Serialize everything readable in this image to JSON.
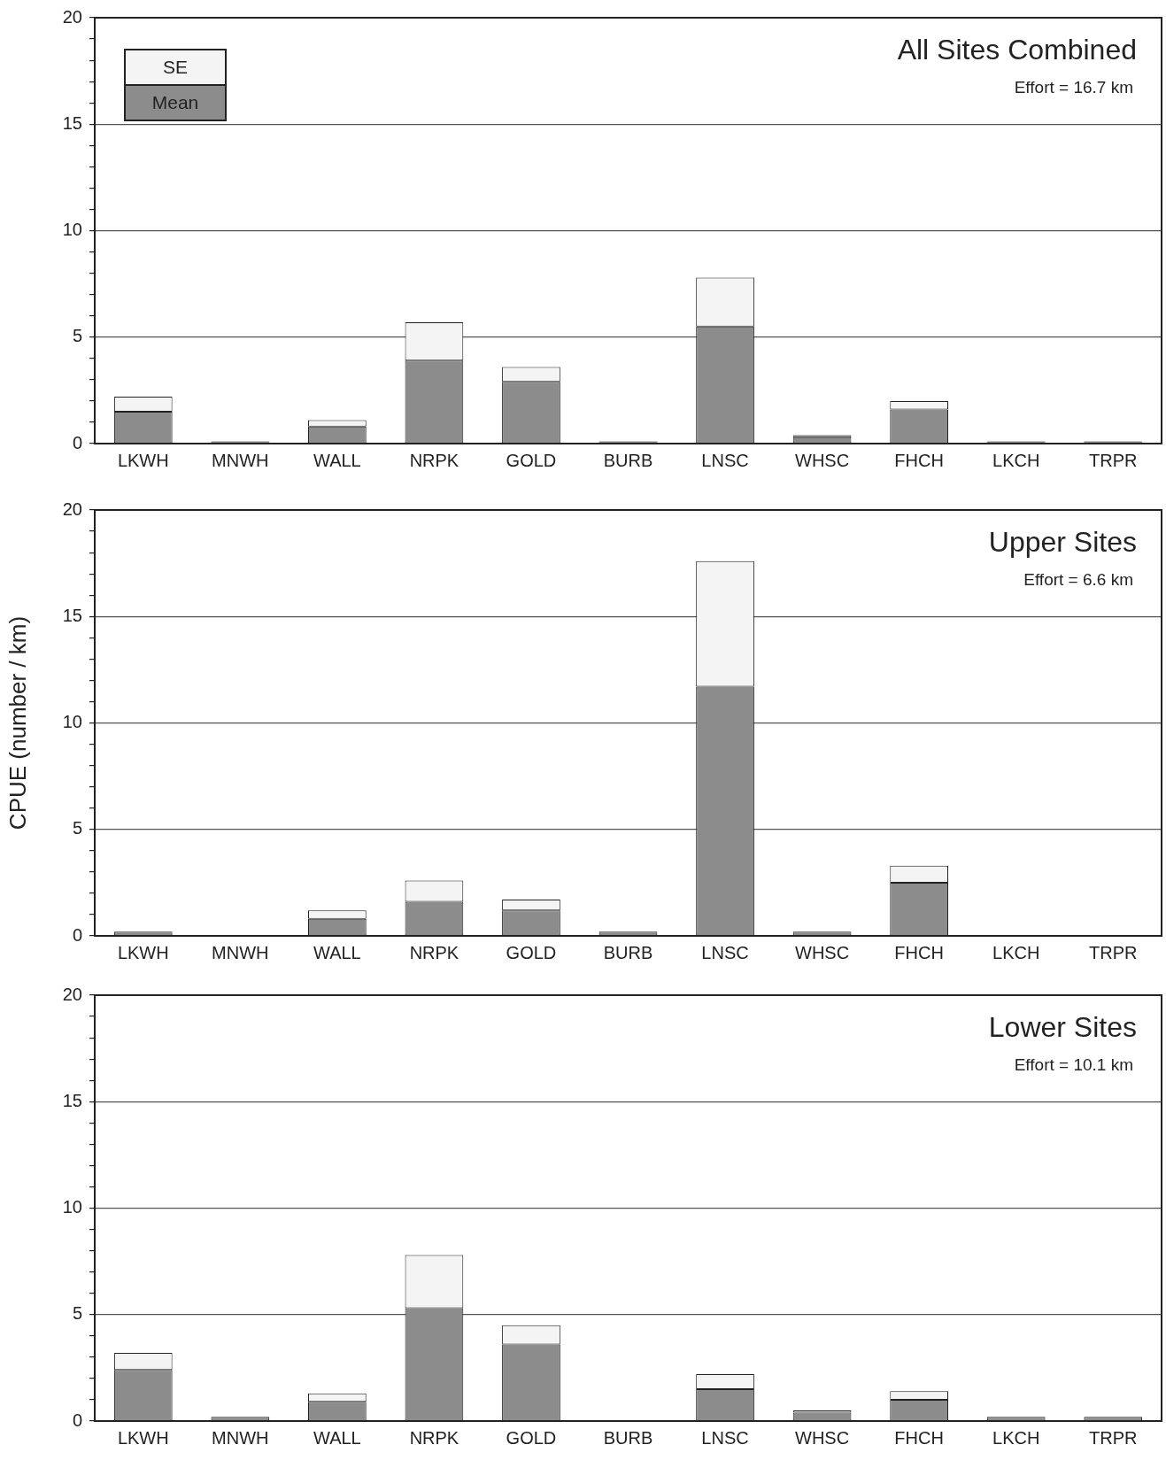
{
  "chart_data": [
    {
      "type": "bar",
      "title": "All Sites Combined",
      "subtitle": "Effort = 16.7 km",
      "stacked": true,
      "grid": "y",
      "legend": "top left",
      "categories": [
        "LKWH",
        "MNWH",
        "WALL",
        "NRPK",
        "GOLD",
        "BURB",
        "LNSC",
        "WHSC",
        "FHCH",
        "LKCH",
        "TRPR"
      ],
      "series": [
        {
          "name": "Mean",
          "color": "#8c8c8c",
          "values": [
            1.5,
            0.1,
            0.8,
            3.9,
            2.9,
            0.1,
            5.5,
            0.3,
            1.6,
            0.1,
            0.1
          ]
        },
        {
          "name": "SE",
          "color": "#f4f4f4",
          "values": [
            0.7,
            null,
            0.3,
            1.8,
            0.7,
            null,
            2.3,
            0.1,
            0.4,
            null,
            null
          ]
        }
      ],
      "ylim": [
        0,
        20
      ],
      "yticks": [
        0,
        {
          "value": 1,
          "label": null
        },
        {
          "value": 2,
          "label": null
        },
        {
          "value": 3,
          "label": null
        },
        {
          "value": 4,
          "label": null
        },
        5,
        {
          "value": 6,
          "label": null
        },
        {
          "value": 7,
          "label": null
        },
        {
          "value": 8,
          "label": null
        },
        {
          "value": 9,
          "label": null
        },
        10,
        {
          "value": 11,
          "label": null
        },
        {
          "value": 12,
          "label": null
        },
        {
          "value": 13,
          "label": null
        },
        {
          "value": 14,
          "label": null
        },
        15,
        {
          "value": 16,
          "label": null
        },
        {
          "value": 17,
          "label": null
        },
        {
          "value": 18,
          "label": null
        },
        {
          "value": 19,
          "label": null
        },
        20
      ]
    },
    {
      "type": "bar",
      "title": "Upper Sites",
      "subtitle": "Effort = 6.6 km",
      "ylabel": "CPUE (number / km)",
      "stacked": true,
      "grid": "y",
      "categories": [
        "LKWH",
        "MNWH",
        "WALL",
        "NRPK",
        "GOLD",
        "BURB",
        "LNSC",
        "WHSC",
        "FHCH",
        "LKCH",
        "TRPR"
      ],
      "series": [
        {
          "color": "#8c8c8c",
          "values": [
            0.2,
            0,
            0.8,
            1.6,
            1.2,
            0.2,
            11.7,
            0.2,
            2.5,
            0,
            0
          ]
        },
        {
          "color": "#f4f4f4",
          "values": [
            null,
            null,
            0.4,
            1.0,
            0.5,
            null,
            5.9,
            null,
            0.8,
            null,
            null
          ]
        }
      ],
      "ylim": [
        0,
        20
      ],
      "yticks": [
        0,
        {
          "value": 1,
          "label": null
        },
        {
          "value": 2,
          "label": null
        },
        {
          "value": 3,
          "label": null
        },
        {
          "value": 4,
          "label": null
        },
        5,
        {
          "value": 6,
          "label": null
        },
        {
          "value": 7,
          "label": null
        },
        {
          "value": 8,
          "label": null
        },
        {
          "value": 9,
          "label": null
        },
        10,
        {
          "value": 11,
          "label": null
        },
        {
          "value": 12,
          "label": null
        },
        {
          "value": 13,
          "label": null
        },
        {
          "value": 14,
          "label": null
        },
        15,
        {
          "value": 16,
          "label": null
        },
        {
          "value": 17,
          "label": null
        },
        {
          "value": 18,
          "label": null
        },
        {
          "value": 19,
          "label": null
        },
        20
      ]
    },
    {
      "type": "bar",
      "title": "Lower Sites",
      "subtitle": "Effort = 10.1 km",
      "stacked": true,
      "grid": "y",
      "categories": [
        "LKWH",
        "MNWH",
        "WALL",
        "NRPK",
        "GOLD",
        "BURB",
        "LNSC",
        "WHSC",
        "FHCH",
        "LKCH",
        "TRPR"
      ],
      "series": [
        {
          "color": "#8c8c8c",
          "values": [
            2.4,
            0.2,
            0.9,
            5.3,
            3.6,
            0,
            1.5,
            0.4,
            1.0,
            0.2,
            0.2
          ]
        },
        {
          "color": "#f4f4f4",
          "values": [
            0.8,
            null,
            0.4,
            2.5,
            0.9,
            null,
            0.7,
            0.1,
            0.4,
            null,
            null
          ]
        }
      ],
      "ylim": [
        0,
        20
      ],
      "yticks": [
        0,
        {
          "value": 1,
          "label": null
        },
        {
          "value": 2,
          "label": null
        },
        {
          "value": 3,
          "label": null
        },
        {
          "value": 4,
          "label": null
        },
        5,
        {
          "value": 6,
          "label": null
        },
        {
          "value": 7,
          "label": null
        },
        {
          "value": 8,
          "label": null
        },
        {
          "value": 9,
          "label": null
        },
        10,
        {
          "value": 11,
          "label": null
        },
        {
          "value": 12,
          "label": null
        },
        {
          "value": 13,
          "label": null
        },
        {
          "value": 14,
          "label": null
        },
        15,
        {
          "value": 16,
          "label": null
        },
        {
          "value": 17,
          "label": null
        },
        {
          "value": 18,
          "label": null
        },
        {
          "value": 19,
          "label": null
        },
        20
      ]
    }
  ]
}
